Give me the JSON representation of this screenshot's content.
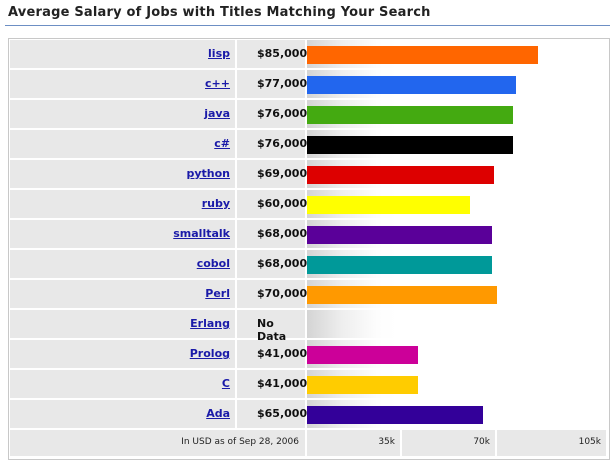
{
  "title": "Average Salary of Jobs with Titles Matching Your Search",
  "footer_note": "In USD as of Sep 28, 2006",
  "chart_data": {
    "type": "bar",
    "orientation": "horizontal",
    "title": "Average Salary of Jobs with Titles Matching Your Search",
    "categories": [
      "lisp",
      "c++",
      "java",
      "c#",
      "python",
      "ruby",
      "smalltalk",
      "cobol",
      "Perl",
      "Erlang",
      "Prolog",
      "C",
      "Ada"
    ],
    "values": [
      85000,
      77000,
      76000,
      76000,
      69000,
      60000,
      68000,
      68000,
      70000,
      null,
      41000,
      41000,
      65000
    ],
    "value_labels": [
      "$85,000",
      "$77,000",
      "$76,000",
      "$76,000",
      "$69,000",
      "$60,000",
      "$68,000",
      "$68,000",
      "$70,000",
      "No Data",
      "$41,000",
      "$41,000",
      "$65,000"
    ],
    "colors": [
      "#ff6600",
      "#2266ee",
      "#44aa11",
      "#000000",
      "#dd0000",
      "#ffff00",
      "#5a0099",
      "#009999",
      "#ff9900",
      null,
      "#cc0099",
      "#ffcc00",
      "#330099"
    ],
    "xlim": [
      0,
      105000
    ],
    "ticks": [
      35000,
      70000,
      105000
    ],
    "tick_labels": [
      "35k",
      "70k",
      "105k"
    ],
    "grid": false,
    "legend": "none"
  }
}
